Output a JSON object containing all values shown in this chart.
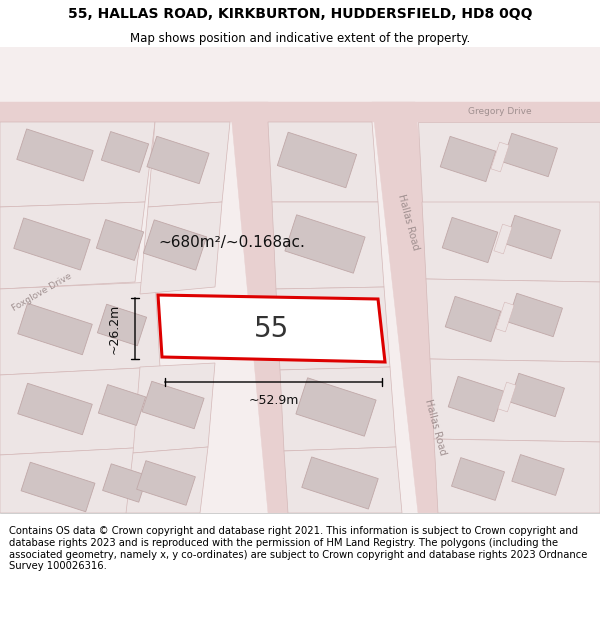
{
  "title_line1": "55, HALLAS ROAD, KIRKBURTON, HUDDERSFIELD, HD8 0QQ",
  "title_line2": "Map shows position and indicative extent of the property.",
  "footer_text": "Contains OS data © Crown copyright and database right 2021. This information is subject to Crown copyright and database rights 2023 and is reproduced with the permission of HM Land Registry. The polygons (including the associated geometry, namely x, y co-ordinates) are subject to Crown copyright and database rights 2023 Ordnance Survey 100026316.",
  "area_label": "~680m²/~0.168ac.",
  "width_label": "~52.9m",
  "height_label": "~26.2m",
  "plot_number": "55",
  "map_bg": "#f5eeee",
  "road_fill": "#e8d0d0",
  "block_fill": "#ede5e5",
  "block_edge": "#d4b8b8",
  "building_fill": "#d0c4c4",
  "building_edge": "#c0a8a8",
  "plot_fill": "#ffffff",
  "plot_outline": "#dd0000",
  "road_text": "#a09090",
  "annotation_color": "#111111",
  "title_fontsize": 10,
  "subtitle_fontsize": 8.5,
  "footer_fontsize": 7.2,
  "map_text_fontsize": 7.0,
  "area_fontsize": 11,
  "dim_fontsize": 9,
  "plot_label_fontsize": 20
}
